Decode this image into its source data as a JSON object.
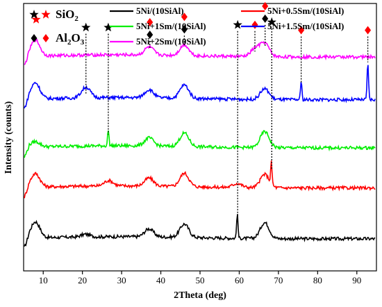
{
  "chart_data": {
    "type": "line",
    "xlabel": "2Theta (deg)",
    "ylabel": "Intensity (counts)",
    "xlim": [
      5,
      95
    ],
    "xticks": [
      10,
      20,
      30,
      40,
      50,
      60,
      70,
      80,
      90
    ],
    "ylim": [
      0,
      100
    ],
    "grid": false,
    "legend_position": "top",
    "phase_legend": [
      {
        "name": "SiO",
        "subscript": "2",
        "symbols": [
          "star-black",
          "star-red"
        ]
      },
      {
        "name": "Al",
        "subscript": "2",
        "name2": "O",
        "subscript2": "3",
        "symbols": [
          "diamond-black",
          "diamond-red"
        ]
      }
    ],
    "series": [
      {
        "name": "5Ni/(10SiAl)",
        "color": "#000000",
        "baseline": 12,
        "peaks": [
          [
            8,
            6
          ],
          [
            20.8,
            1
          ],
          [
            37,
            3
          ],
          [
            46,
            5
          ],
          [
            59.5,
            9
          ],
          [
            66.5,
            6
          ]
        ]
      },
      {
        "name": "5Ni+0.5Sm/(10SiAl)",
        "color": "#ff0000",
        "baseline": 31,
        "peaks": [
          [
            8,
            5
          ],
          [
            26.7,
            2
          ],
          [
            37,
            3
          ],
          [
            46,
            5
          ],
          [
            59.5,
            1.5
          ],
          [
            66.5,
            5
          ],
          [
            68.2,
            8
          ]
        ]
      },
      {
        "name": "5Ni+1Sm/(10SiAl)",
        "color": "#00ee00",
        "baseline": 46,
        "peaks": [
          [
            8,
            2
          ],
          [
            26.6,
            6
          ],
          [
            37,
            3
          ],
          [
            46,
            5
          ],
          [
            66.5,
            6
          ]
        ]
      },
      {
        "name": "5Ni+1.5Sm/(10SiAl)",
        "color": "#0000ff",
        "baseline": 64,
        "peaks": [
          [
            8,
            6
          ],
          [
            20.9,
            4
          ],
          [
            37,
            3
          ],
          [
            46,
            5
          ],
          [
            66.5,
            4
          ],
          [
            75.8,
            7
          ],
          [
            92.8,
            14
          ]
        ]
      },
      {
        "name": "5Ni+2Sm/(10SiAl)",
        "color": "#ff00ff",
        "baseline": 80,
        "peaks": [
          [
            8,
            6
          ],
          [
            37,
            3
          ],
          [
            46,
            4
          ],
          [
            64.1,
            3
          ],
          [
            66.5,
            5
          ]
        ]
      }
    ],
    "annotations": [
      {
        "x": 8.2,
        "symbols": [
          "star-red"
        ],
        "top": 94,
        "drop": 0
      },
      {
        "x": 20.9,
        "symbols": [
          "star-black"
        ],
        "top": 91,
        "drop": 66
      },
      {
        "x": 26.6,
        "symbols": [
          "star-black"
        ],
        "top": 91,
        "drop": 51
      },
      {
        "x": 37.2,
        "symbols": [
          "diamond-black",
          "diamond-red"
        ],
        "top": 93,
        "drop": 83
      },
      {
        "x": 46.0,
        "symbols": [
          "diamond-black",
          "diamond-red"
        ],
        "top": 95,
        "drop": 84
      },
      {
        "x": 59.6,
        "symbols": [
          "star-black"
        ],
        "top": 92,
        "drop": 20
      },
      {
        "x": 64.0,
        "symbols": [
          "diamond-red"
        ],
        "top": 92,
        "drop": 82
      },
      {
        "x": 66.6,
        "symbols": [
          "diamond-black",
          "diamond-red"
        ],
        "top": 99,
        "drop": 84
      },
      {
        "x": 68.3,
        "symbols": [
          "star-black"
        ],
        "top": 93,
        "drop": 38
      },
      {
        "x": 75.8,
        "symbols": [
          "diamond-red"
        ],
        "top": 90,
        "drop": 70
      },
      {
        "x": 92.8,
        "symbols": [
          "diamond-red"
        ],
        "top": 90,
        "drop": 78
      }
    ]
  }
}
